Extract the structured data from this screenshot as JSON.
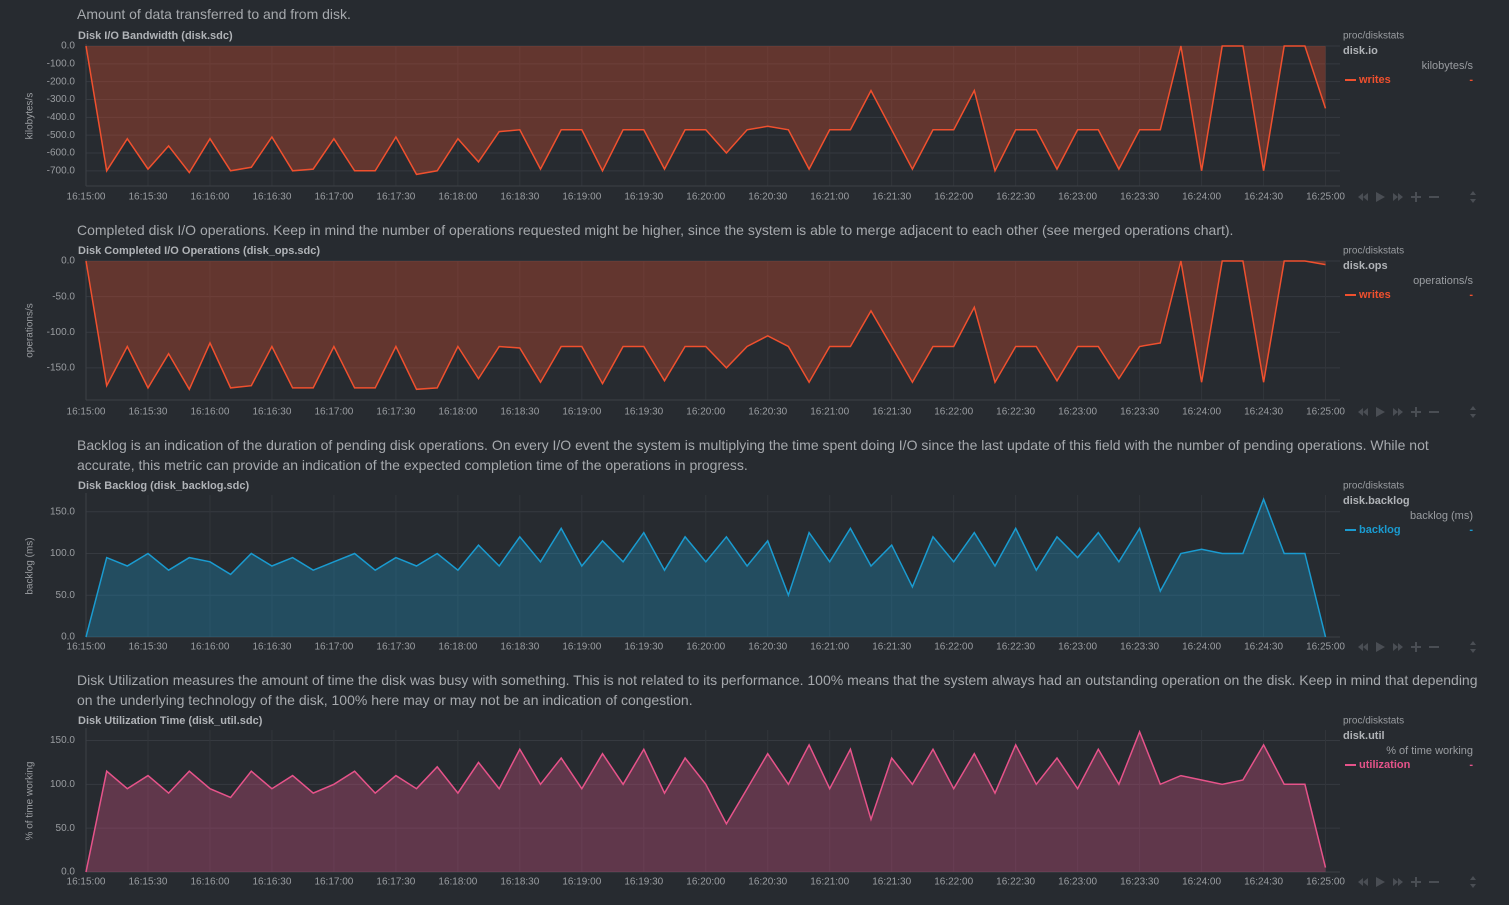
{
  "chart_data": [
    {
      "type": "area",
      "description": "Amount of data transferred to and from disk.",
      "title": "Disk I/O Bandwidth (disk.sdc)",
      "context": "proc/diskstats",
      "chart_id": "disk.io",
      "units": "kilobytes/s",
      "x": [
        "16:15:00",
        "16:15:10",
        "16:15:20",
        "16:15:30",
        "16:15:40",
        "16:15:50",
        "16:16:00",
        "16:16:10",
        "16:16:20",
        "16:16:30",
        "16:16:40",
        "16:16:50",
        "16:17:00",
        "16:17:10",
        "16:17:20",
        "16:17:30",
        "16:17:40",
        "16:17:50",
        "16:18:00",
        "16:18:10",
        "16:18:20",
        "16:18:30",
        "16:18:40",
        "16:18:50",
        "16:19:00",
        "16:19:10",
        "16:19:20",
        "16:19:30",
        "16:19:40",
        "16:19:50",
        "16:20:00",
        "16:20:10",
        "16:20:20",
        "16:20:30",
        "16:20:40",
        "16:20:50",
        "16:21:00",
        "16:21:10",
        "16:21:20",
        "16:21:30",
        "16:21:40",
        "16:21:50",
        "16:22:00",
        "16:22:10",
        "16:22:20",
        "16:22:30",
        "16:22:40",
        "16:22:50",
        "16:23:00",
        "16:23:10",
        "16:23:20",
        "16:23:30",
        "16:23:40",
        "16:23:50",
        "16:24:00",
        "16:24:10",
        "16:24:20",
        "16:24:30",
        "16:24:40",
        "16:24:50",
        "16:25:00"
      ],
      "series": [
        {
          "name": "writes",
          "color": "#f0502e",
          "legend_value": "-",
          "values": [
            0,
            -700,
            -520,
            -690,
            -560,
            -710,
            -520,
            -700,
            -680,
            -510,
            -700,
            -690,
            -520,
            -700,
            -700,
            -510,
            -720,
            -700,
            -520,
            -650,
            -480,
            -470,
            -690,
            -470,
            -470,
            -700,
            -470,
            -470,
            -690,
            -470,
            -470,
            -600,
            -470,
            -450,
            -470,
            -690,
            -470,
            -470,
            -250,
            -470,
            -690,
            -470,
            -470,
            -250,
            -700,
            -470,
            -470,
            -690,
            -470,
            -470,
            -690,
            -470,
            -470,
            0,
            -700,
            0,
            0,
            -700,
            0,
            0,
            -350
          ]
        }
      ],
      "xlim": [
        "16:15:00",
        "16:25:07"
      ],
      "xticks": [
        "16:15:00",
        "16:15:30",
        "16:16:00",
        "16:16:30",
        "16:17:00",
        "16:17:30",
        "16:18:00",
        "16:18:30",
        "16:19:00",
        "16:19:30",
        "16:20:00",
        "16:20:30",
        "16:21:00",
        "16:21:30",
        "16:22:00",
        "16:22:30",
        "16:23:00",
        "16:23:30",
        "16:24:00",
        "16:24:30",
        "16:25:00"
      ],
      "ylim": [
        -785,
        0
      ],
      "yticks": [
        {
          "value": 0,
          "label": "0.0"
        },
        {
          "value": -100,
          "label": "-100.0"
        },
        {
          "value": -200,
          "label": "-200.0"
        },
        {
          "value": -300,
          "label": "-300.0"
        },
        {
          "value": -400,
          "label": "-400.0"
        },
        {
          "value": -500,
          "label": "-500.0"
        },
        {
          "value": -600,
          "label": "-600.0"
        },
        {
          "value": -700,
          "label": "-700.0"
        }
      ],
      "grid": true
    },
    {
      "type": "area",
      "description": "Completed disk I/O operations. Keep in mind the number of operations requested might be higher, since the system is able to merge adjacent to each other (see merged operations chart).",
      "title": "Disk Completed I/O Operations (disk_ops.sdc)",
      "context": "proc/diskstats",
      "chart_id": "disk.ops",
      "units": "operations/s",
      "x": [
        "16:15:00",
        "16:15:10",
        "16:15:20",
        "16:15:30",
        "16:15:40",
        "16:15:50",
        "16:16:00",
        "16:16:10",
        "16:16:20",
        "16:16:30",
        "16:16:40",
        "16:16:50",
        "16:17:00",
        "16:17:10",
        "16:17:20",
        "16:17:30",
        "16:17:40",
        "16:17:50",
        "16:18:00",
        "16:18:10",
        "16:18:20",
        "16:18:30",
        "16:18:40",
        "16:18:50",
        "16:19:00",
        "16:19:10",
        "16:19:20",
        "16:19:30",
        "16:19:40",
        "16:19:50",
        "16:20:00",
        "16:20:10",
        "16:20:20",
        "16:20:30",
        "16:20:40",
        "16:20:50",
        "16:21:00",
        "16:21:10",
        "16:21:20",
        "16:21:30",
        "16:21:40",
        "16:21:50",
        "16:22:00",
        "16:22:10",
        "16:22:20",
        "16:22:30",
        "16:22:40",
        "16:22:50",
        "16:23:00",
        "16:23:10",
        "16:23:20",
        "16:23:30",
        "16:23:40",
        "16:23:50",
        "16:24:00",
        "16:24:10",
        "16:24:20",
        "16:24:30",
        "16:24:40",
        "16:24:50",
        "16:25:00"
      ],
      "series": [
        {
          "name": "writes",
          "color": "#f0502e",
          "legend_value": "-",
          "values": [
            0,
            -175,
            -120,
            -178,
            -130,
            -180,
            -115,
            -178,
            -175,
            -120,
            -178,
            -178,
            -120,
            -178,
            -178,
            -120,
            -180,
            -178,
            -120,
            -165,
            -120,
            -122,
            -170,
            -120,
            -120,
            -172,
            -120,
            -120,
            -168,
            -120,
            -120,
            -150,
            -120,
            -105,
            -120,
            -170,
            -120,
            -120,
            -70,
            -120,
            -170,
            -120,
            -120,
            -65,
            -170,
            -120,
            -120,
            -168,
            -120,
            -120,
            -165,
            -120,
            -115,
            0,
            -170,
            0,
            0,
            -170,
            0,
            0,
            -5
          ]
        }
      ],
      "xlim": [
        "16:15:00",
        "16:25:07"
      ],
      "xticks": [
        "16:15:00",
        "16:15:30",
        "16:16:00",
        "16:16:30",
        "16:17:00",
        "16:17:30",
        "16:18:00",
        "16:18:30",
        "16:19:00",
        "16:19:30",
        "16:20:00",
        "16:20:30",
        "16:21:00",
        "16:21:30",
        "16:22:00",
        "16:22:30",
        "16:23:00",
        "16:23:30",
        "16:24:00",
        "16:24:30",
        "16:25:00"
      ],
      "ylim": [
        -195,
        0
      ],
      "yticks": [
        {
          "value": 0,
          "label": "0.0"
        },
        {
          "value": -50,
          "label": "-50.0"
        },
        {
          "value": -100,
          "label": "-100.0"
        },
        {
          "value": -150,
          "label": "-150.0"
        }
      ],
      "grid": true
    },
    {
      "type": "area",
      "description": "Backlog is an indication of the duration of pending disk operations. On every I/O event the system is multiplying the time spent doing I/O since the last update of this field with the number of pending operations. While not accurate, this metric can provide an indication of the expected completion time of the operations in progress.",
      "title": "Disk Backlog (disk_backlog.sdc)",
      "context": "proc/diskstats",
      "chart_id": "disk.backlog",
      "units": "backlog (ms)",
      "x": [
        "16:15:00",
        "16:15:10",
        "16:15:20",
        "16:15:30",
        "16:15:40",
        "16:15:50",
        "16:16:00",
        "16:16:10",
        "16:16:20",
        "16:16:30",
        "16:16:40",
        "16:16:50",
        "16:17:00",
        "16:17:10",
        "16:17:20",
        "16:17:30",
        "16:17:40",
        "16:17:50",
        "16:18:00",
        "16:18:10",
        "16:18:20",
        "16:18:30",
        "16:18:40",
        "16:18:50",
        "16:19:00",
        "16:19:10",
        "16:19:20",
        "16:19:30",
        "16:19:40",
        "16:19:50",
        "16:20:00",
        "16:20:10",
        "16:20:20",
        "16:20:30",
        "16:20:40",
        "16:20:50",
        "16:21:00",
        "16:21:10",
        "16:21:20",
        "16:21:30",
        "16:21:40",
        "16:21:50",
        "16:22:00",
        "16:22:10",
        "16:22:20",
        "16:22:30",
        "16:22:40",
        "16:22:50",
        "16:23:00",
        "16:23:10",
        "16:23:20",
        "16:23:30",
        "16:23:40",
        "16:23:50",
        "16:24:00",
        "16:24:10",
        "16:24:20",
        "16:24:30",
        "16:24:40",
        "16:24:50",
        "16:25:00"
      ],
      "series": [
        {
          "name": "backlog",
          "color": "#1a9bd0",
          "legend_value": "-",
          "values": [
            0,
            95,
            85,
            100,
            80,
            95,
            90,
            75,
            100,
            85,
            95,
            80,
            90,
            100,
            80,
            95,
            85,
            100,
            80,
            110,
            85,
            120,
            90,
            130,
            85,
            115,
            90,
            125,
            80,
            120,
            90,
            120,
            85,
            115,
            50,
            125,
            90,
            130,
            85,
            110,
            60,
            120,
            90,
            125,
            85,
            130,
            80,
            120,
            95,
            125,
            90,
            130,
            55,
            100,
            105,
            100,
            100,
            165,
            100,
            100,
            0
          ]
        }
      ],
      "xlim": [
        "16:15:00",
        "16:25:07"
      ],
      "xticks": [
        "16:15:00",
        "16:15:30",
        "16:16:00",
        "16:16:30",
        "16:17:00",
        "16:17:30",
        "16:18:00",
        "16:18:30",
        "16:19:00",
        "16:19:30",
        "16:20:00",
        "16:20:30",
        "16:21:00",
        "16:21:30",
        "16:22:00",
        "16:22:30",
        "16:23:00",
        "16:23:30",
        "16:24:00",
        "16:24:30",
        "16:25:00"
      ],
      "ylim": [
        0,
        170
      ],
      "yticks": [
        {
          "value": 0,
          "label": "0.0"
        },
        {
          "value": 50,
          "label": "50.0"
        },
        {
          "value": 100,
          "label": "100.0"
        },
        {
          "value": 150,
          "label": "150.0"
        }
      ],
      "grid": true
    },
    {
      "type": "area",
      "description": "Disk Utilization measures the amount of time the disk was busy with something. This is not related to its performance. 100% means that the system always had an outstanding operation on the disk. Keep in mind that depending on the underlying technology of the disk, 100% here may or may not be an indication of congestion.",
      "title": "Disk Utilization Time (disk_util.sdc)",
      "context": "proc/diskstats",
      "chart_id": "disk.util",
      "units": "% of time working",
      "x": [
        "16:15:00",
        "16:15:10",
        "16:15:20",
        "16:15:30",
        "16:15:40",
        "16:15:50",
        "16:16:00",
        "16:16:10",
        "16:16:20",
        "16:16:30",
        "16:16:40",
        "16:16:50",
        "16:17:00",
        "16:17:10",
        "16:17:20",
        "16:17:30",
        "16:17:40",
        "16:17:50",
        "16:18:00",
        "16:18:10",
        "16:18:20",
        "16:18:30",
        "16:18:40",
        "16:18:50",
        "16:19:00",
        "16:19:10",
        "16:19:20",
        "16:19:30",
        "16:19:40",
        "16:19:50",
        "16:20:00",
        "16:20:10",
        "16:20:20",
        "16:20:30",
        "16:20:40",
        "16:20:50",
        "16:21:00",
        "16:21:10",
        "16:21:20",
        "16:21:30",
        "16:21:40",
        "16:21:50",
        "16:22:00",
        "16:22:10",
        "16:22:20",
        "16:22:30",
        "16:22:40",
        "16:22:50",
        "16:23:00",
        "16:23:10",
        "16:23:20",
        "16:23:30",
        "16:23:40",
        "16:23:50",
        "16:24:00",
        "16:24:10",
        "16:24:20",
        "16:24:30",
        "16:24:40",
        "16:24:50",
        "16:25:00"
      ],
      "series": [
        {
          "name": "utilization",
          "color": "#e6538a",
          "legend_value": "-",
          "values": [
            0,
            115,
            95,
            110,
            90,
            115,
            95,
            85,
            115,
            95,
            110,
            90,
            100,
            115,
            90,
            110,
            95,
            120,
            90,
            125,
            95,
            140,
            100,
            130,
            95,
            135,
            100,
            140,
            90,
            130,
            100,
            55,
            95,
            135,
            100,
            145,
            95,
            140,
            60,
            130,
            100,
            140,
            95,
            135,
            90,
            145,
            100,
            130,
            95,
            140,
            100,
            160,
            100,
            110,
            105,
            100,
            105,
            145,
            100,
            100,
            5
          ]
        }
      ],
      "xlim": [
        "16:15:00",
        "16:25:07"
      ],
      "xticks": [
        "16:15:00",
        "16:15:30",
        "16:16:00",
        "16:16:30",
        "16:17:00",
        "16:17:30",
        "16:18:00",
        "16:18:30",
        "16:19:00",
        "16:19:30",
        "16:20:00",
        "16:20:30",
        "16:21:00",
        "16:21:30",
        "16:22:00",
        "16:22:30",
        "16:23:00",
        "16:23:30",
        "16:24:00",
        "16:24:30",
        "16:25:00"
      ],
      "ylim": [
        0,
        162
      ],
      "yticks": [
        {
          "value": 0,
          "label": "0.0"
        },
        {
          "value": 50,
          "label": "50.0"
        },
        {
          "value": 100,
          "label": "100.0"
        },
        {
          "value": 150,
          "label": "150.0"
        }
      ],
      "grid": true
    }
  ]
}
